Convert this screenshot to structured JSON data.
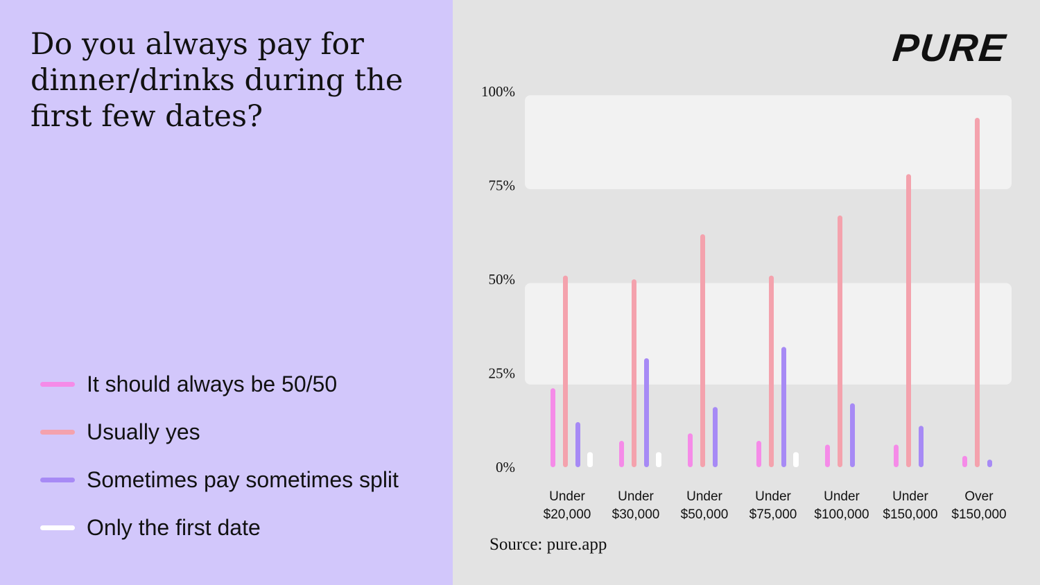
{
  "chart_data": {
    "type": "bar",
    "title": "Do you always pay for dinner/drinks during the first few dates?",
    "categories": [
      [
        "Under",
        "$20,000"
      ],
      [
        "Under",
        "$30,000"
      ],
      [
        "Under",
        "$50,000"
      ],
      [
        "Under",
        "$75,000"
      ],
      [
        "Under",
        "$100,000"
      ],
      [
        "Under",
        "$150,000"
      ],
      [
        "Over",
        "$150,000"
      ]
    ],
    "series": [
      {
        "name": "It should always be 50/50",
        "color": "#f58be8",
        "values": [
          21,
          7,
          9,
          7,
          6,
          6,
          3
        ]
      },
      {
        "name": "Usually yes",
        "color": "#f4a2ad",
        "values": [
          51,
          50,
          62,
          51,
          67,
          78,
          93
        ]
      },
      {
        "name": "Sometimes pay sometimes split",
        "color": "#a78af5",
        "values": [
          12,
          29,
          16,
          32,
          17,
          11,
          2
        ]
      },
      {
        "name": "Only the first date",
        "color": "#ffffff",
        "values": [
          4,
          4,
          0,
          4,
          0,
          0,
          0
        ]
      }
    ],
    "y_ticks": [
      {
        "value": 100,
        "label": "100%"
      },
      {
        "value": 75,
        "label": "75%"
      },
      {
        "value": 50,
        "label": "50%"
      },
      {
        "value": 25,
        "label": "25%"
      },
      {
        "value": 0,
        "label": "0%"
      }
    ],
    "ylim": [
      0,
      100
    ],
    "xlabel": "",
    "ylabel": "",
    "legend_position": "left"
  },
  "brand": {
    "logo": "PURE",
    "background_left": "#d2c7fb",
    "background_right": "#e3e3e3"
  },
  "source": "Source: pure.app"
}
